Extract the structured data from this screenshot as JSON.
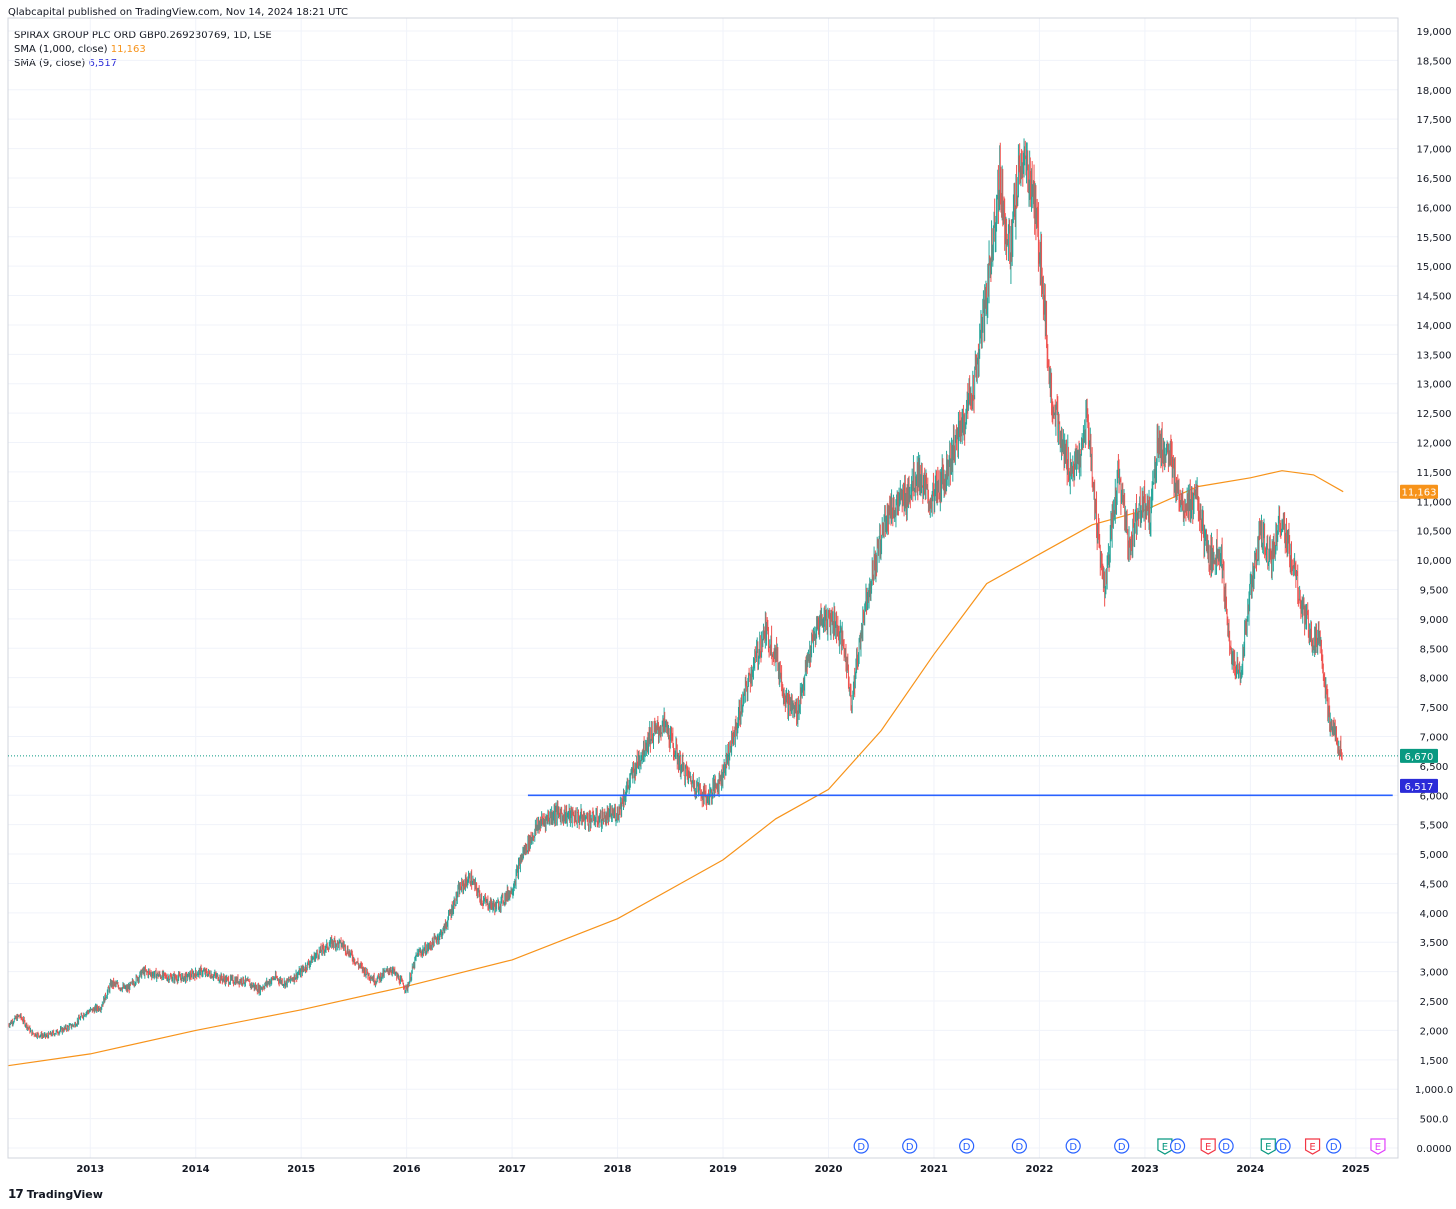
{
  "header": {
    "publisher": "Qlabcapital published on TradingView.com, Nov 14, 2024 18:21 UTC"
  },
  "legend": {
    "symbol": "SPIRAX GROUP PLC ORD GBP0.269230769, 1D, LSE",
    "sma1000_label": "SMA (1,000, close)",
    "sma1000_value": "11,163",
    "sma9_label": "SMA (9, close)",
    "sma9_value": "6,517"
  },
  "footer": {
    "brand": "TradingView",
    "logo": "17"
  },
  "colors": {
    "up": "#26a69a",
    "down": "#ef5350",
    "sma1000": "#f7931a",
    "sma9": "#2b2bd8",
    "hline": "#2962ff",
    "last_price": "#089981",
    "grid": "#f0f3fa",
    "axis_text": "#131722",
    "dividend": "#2962ff",
    "earnings_beat": "#089981",
    "earnings_miss": "#f23645",
    "earnings_future": "#e040fb"
  },
  "chart_data": {
    "type": "line",
    "ylim": [
      0,
      19000
    ],
    "y_ticks": [
      0,
      500,
      1000,
      1500,
      2000,
      2500,
      3000,
      3500,
      4000,
      4500,
      5000,
      5500,
      6000,
      6500,
      7000,
      7500,
      8000,
      8500,
      9000,
      9500,
      10000,
      10500,
      11000,
      11500,
      12000,
      12500,
      13000,
      13500,
      14000,
      14500,
      15000,
      15500,
      16000,
      16500,
      17000,
      17500,
      18000,
      18500,
      19000
    ],
    "y_tick_labels": [
      "0.0000",
      "500.0",
      "1,000.0",
      "1,500",
      "2,000",
      "2,500",
      "3,000",
      "3,500",
      "4,000",
      "4,500",
      "5,000",
      "5,500",
      "6,000",
      "6,500",
      "7,000",
      "7,500",
      "8,000",
      "8,500",
      "9,000",
      "9,500",
      "10,000",
      "10,500",
      "11,000",
      "11,500",
      "12,000",
      "12,500",
      "13,000",
      "13,500",
      "14,000",
      "14,500",
      "15,000",
      "15,500",
      "16,000",
      "16,500",
      "17,000",
      "17,500",
      "18,000",
      "18,500",
      "19,000"
    ],
    "xlim": [
      2012.22,
      2025.4
    ],
    "x_ticks": [
      2013,
      2014,
      2015,
      2016,
      2017,
      2018,
      2019,
      2020,
      2021,
      2022,
      2023,
      2024,
      2025
    ],
    "x_tick_labels": [
      "2013",
      "2014",
      "2015",
      "2016",
      "2017",
      "2018",
      "2019",
      "2020",
      "2021",
      "2022",
      "2023",
      "2024",
      "2025"
    ],
    "grid": true,
    "series": [
      {
        "name": "SPIRAX GROUP PLC ORD GBP0.269230769",
        "style": "ohlc-bars",
        "x": [
          2012.22,
          2012.33,
          2012.45,
          2012.58,
          2012.72,
          2012.85,
          2012.95,
          2013.1,
          2013.2,
          2013.35,
          2013.5,
          2013.62,
          2013.75,
          2013.9,
          2014.05,
          2014.15,
          2014.3,
          2014.45,
          2014.6,
          2014.75,
          2014.85,
          2015.0,
          2015.15,
          2015.3,
          2015.4,
          2015.55,
          2015.7,
          2015.85,
          2016.0,
          2016.1,
          2016.2,
          2016.35,
          2016.5,
          2016.6,
          2016.72,
          2016.85,
          2017.0,
          2017.1,
          2017.25,
          2017.4,
          2017.55,
          2017.7,
          2017.85,
          2018.0,
          2018.15,
          2018.3,
          2018.45,
          2018.6,
          2018.72,
          2018.85,
          2018.98,
          2019.1,
          2019.25,
          2019.4,
          2019.5,
          2019.6,
          2019.7,
          2019.82,
          2019.92,
          2020.05,
          2020.15,
          2020.22,
          2020.35,
          2020.45,
          2020.55,
          2020.7,
          2020.85,
          2020.95,
          2021.05,
          2021.15,
          2021.25,
          2021.38,
          2021.5,
          2021.62,
          2021.72,
          2021.82,
          2021.92,
          2022.02,
          2022.1,
          2022.2,
          2022.3,
          2022.4,
          2022.45,
          2022.55,
          2022.62,
          2022.75,
          2022.85,
          2022.95,
          2023.05,
          2023.12,
          2023.22,
          2023.35,
          2023.5,
          2023.6,
          2023.72,
          2023.8,
          2023.9,
          2024.0,
          2024.1,
          2024.2,
          2024.28,
          2024.35,
          2024.5,
          2024.6,
          2024.65,
          2024.75,
          2024.82,
          2024.87
        ],
        "y": [
          2100,
          2250,
          1950,
          1900,
          2000,
          2100,
          2300,
          2400,
          2800,
          2700,
          3000,
          2950,
          2900,
          2900,
          3000,
          2950,
          2850,
          2850,
          2700,
          2900,
          2800,
          3000,
          3300,
          3500,
          3450,
          3100,
          2850,
          3050,
          2700,
          3300,
          3400,
          3700,
          4400,
          4600,
          4200,
          4100,
          4400,
          5000,
          5500,
          5700,
          5650,
          5600,
          5600,
          5700,
          6400,
          7000,
          7200,
          6500,
          6200,
          5950,
          6300,
          7000,
          8000,
          8800,
          8400,
          7600,
          7400,
          8400,
          9000,
          9000,
          8500,
          7600,
          9300,
          10000,
          10800,
          11000,
          11500,
          11000,
          11200,
          11700,
          12200,
          13000,
          14500,
          16500,
          15200,
          16800,
          16500,
          15000,
          13000,
          12000,
          11500,
          11800,
          12500,
          10500,
          9500,
          11500,
          10200,
          11000,
          10800,
          12000,
          11800,
          11000,
          11000,
          10000,
          10200,
          8500,
          8000,
          9500,
          10500,
          10000,
          10700,
          10300,
          9100,
          8600,
          8800,
          7200,
          7000,
          6670
        ]
      },
      {
        "name": "SMA (1,000, close)",
        "style": "line",
        "x": [
          2012.22,
          2013.0,
          2014.0,
          2015.0,
          2016.0,
          2017.0,
          2018.0,
          2018.6,
          2019.0,
          2019.5,
          2020.0,
          2020.5,
          2021.0,
          2021.5,
          2022.0,
          2022.5,
          2023.0,
          2023.5,
          2024.0,
          2024.3,
          2024.6,
          2024.88
        ],
        "y": [
          1400,
          1600,
          2000,
          2350,
          2750,
          3200,
          3900,
          4500,
          4900,
          5600,
          6100,
          7100,
          8400,
          9600,
          10100,
          10600,
          10850,
          11250,
          11400,
          11520,
          11450,
          11163
        ]
      }
    ],
    "horizontal_lines": [
      {
        "value": 6000,
        "x_start": 2017.15,
        "x_end": 2025.35
      }
    ],
    "last_price": 6670,
    "price_labels": [
      {
        "text": "11,163",
        "value": 11163
      },
      {
        "text": "6,670",
        "value": 6670
      },
      {
        "text": "6,517",
        "value": 6517
      }
    ],
    "events": [
      {
        "letter": "D",
        "x": 2020.31,
        "kind": "dividend"
      },
      {
        "letter": "D",
        "x": 2020.77,
        "kind": "dividend"
      },
      {
        "letter": "D",
        "x": 2021.31,
        "kind": "dividend"
      },
      {
        "letter": "D",
        "x": 2021.81,
        "kind": "dividend"
      },
      {
        "letter": "D",
        "x": 2022.32,
        "kind": "dividend"
      },
      {
        "letter": "D",
        "x": 2022.78,
        "kind": "dividend"
      },
      {
        "letter": "E",
        "x": 2023.19,
        "kind": "earnings_beat"
      },
      {
        "letter": "D",
        "x": 2023.31,
        "kind": "dividend"
      },
      {
        "letter": "E",
        "x": 2023.6,
        "kind": "earnings_miss"
      },
      {
        "letter": "D",
        "x": 2023.77,
        "kind": "dividend"
      },
      {
        "letter": "E",
        "x": 2024.17,
        "kind": "earnings_beat"
      },
      {
        "letter": "D",
        "x": 2024.31,
        "kind": "dividend"
      },
      {
        "letter": "E",
        "x": 2024.59,
        "kind": "earnings_miss"
      },
      {
        "letter": "D",
        "x": 2024.79,
        "kind": "dividend"
      },
      {
        "letter": "E",
        "x": 2025.21,
        "kind": "earnings_future"
      }
    ]
  }
}
